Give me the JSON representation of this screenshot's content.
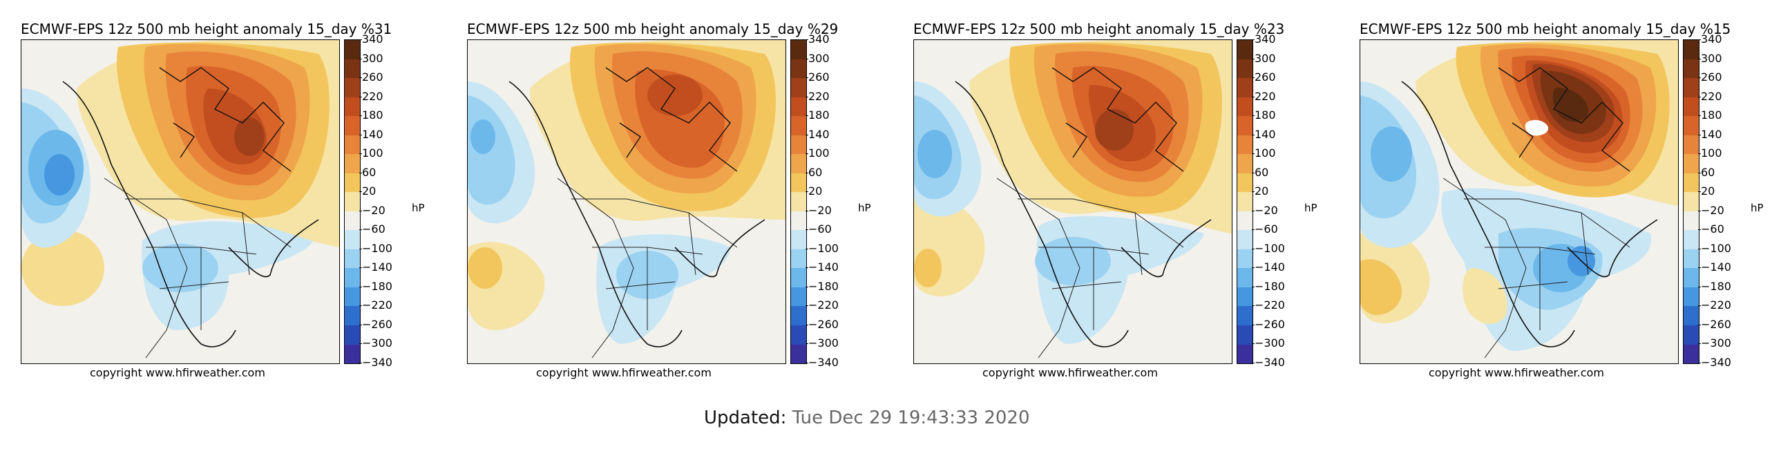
{
  "panels": [
    {
      "title": "ECMWF-EPS 12z 500 mb height anomaly 15_day %31",
      "copyright": "copyright www.hfirweather.com",
      "unit": "hP"
    },
    {
      "title": "ECMWF-EPS 12z 500 mb height anomaly 15_day %29",
      "copyright": "copyright www.hfirweather.com",
      "unit": "hP"
    },
    {
      "title": "ECMWF-EPS 12z 500 mb height anomaly 15_day %23",
      "copyright": "copyright www.hfirweather.com",
      "unit": "hP"
    },
    {
      "title": "ECMWF-EPS 12z 500 mb height anomaly 15_day %15",
      "copyright": "copyright www.hfirweather.com",
      "unit": "hP"
    }
  ],
  "colorbar": {
    "ticks": [
      "340",
      "300",
      "260",
      "220",
      "180",
      "140",
      "100",
      "60",
      "20",
      "−20",
      "−60",
      "−100",
      "−140",
      "−180",
      "−220",
      "−260",
      "−300",
      "−340"
    ],
    "colors": [
      "#5a2a10",
      "#7a3414",
      "#a0401a",
      "#c24e1f",
      "#d9642a",
      "#e8843a",
      "#efa54b",
      "#f3c65d",
      "#f5e4a6",
      "#f2f0ea",
      "#c9e6f4",
      "#9bd2f1",
      "#6cb8eb",
      "#4697e0",
      "#2e6fce",
      "#2a4bb5",
      "#3a2f9c",
      "#5b2a8c"
    ]
  },
  "footer": {
    "label": "Updated:",
    "value": "Tue Dec 29 19:43:33 2020"
  }
}
